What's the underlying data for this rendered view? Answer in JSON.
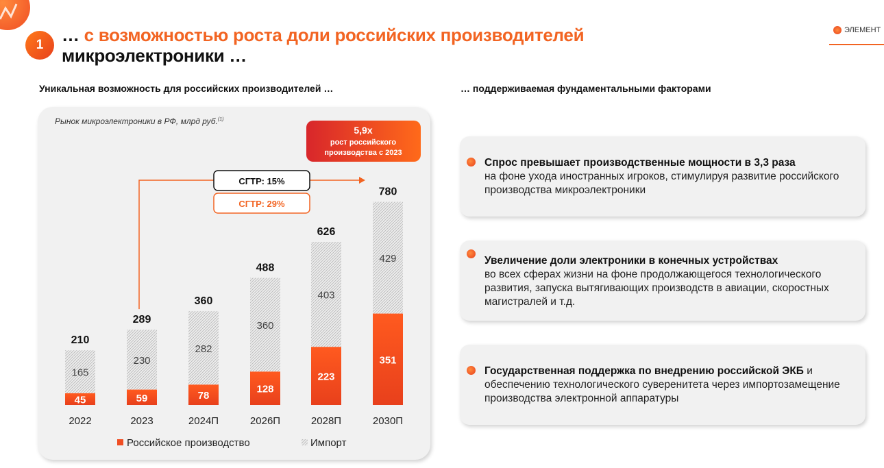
{
  "header": {
    "badge_number": "1",
    "title_line1_dots": "…",
    "title_line1_rest": "с возможностью роста доли российских производителей",
    "title_line2": "микроэлектроники …",
    "brand_text": "ЭЛЕМЕНТ"
  },
  "left_subtitle": "Уникальная возможность для российских производителей …",
  "right_subtitle": "… поддерживаемая фундаментальными факторами",
  "chart_data": {
    "type": "bar",
    "stacked": true,
    "title": "Рынок микроэлектроники в РФ, млрд руб.",
    "title_superscript": "(1)",
    "categories": [
      "2022",
      "2023",
      "2024П",
      "2026П",
      "2028П",
      "2030П"
    ],
    "series": [
      {
        "name": "Российское производство",
        "values": [
          45,
          59,
          78,
          128,
          223,
          351
        ],
        "color": "#f04e23"
      },
      {
        "name": "Импорт",
        "values": [
          165,
          230,
          282,
          360,
          403,
          429
        ],
        "color": "#d9d9d9"
      }
    ],
    "totals": [
      210,
      289,
      360,
      488,
      626,
      780
    ],
    "ylim": [
      0,
      800
    ],
    "grid": false,
    "legend_position": "bottom",
    "annotations": {
      "cagr_total": "СГТР: 15%",
      "cagr_russian": "СГТР: 29%",
      "growth_value": "5,9x",
      "growth_line1": "рост российского",
      "growth_line2": "производства с 2023"
    }
  },
  "factors": [
    {
      "bold": "Спрос превышает производственные мощности в 3,3 раза",
      "text": "на фоне ухода иностранных игроков, стимулируя развитие российского производства микроэлектроники"
    },
    {
      "bold": "Увеличение доли электроники в конечных устройствах",
      "text": "во всех сферах жизни на фоне продолжающегося технологического развития, запуска вытягивающих производств в авиации, скоростных магистралей и т.д."
    },
    {
      "bold": "Государственная поддержка по внедрению российской ЭКБ",
      "text": "и обеспечению технологического суверенитета через импортозамещение производства электронной аппаратуры"
    }
  ]
}
